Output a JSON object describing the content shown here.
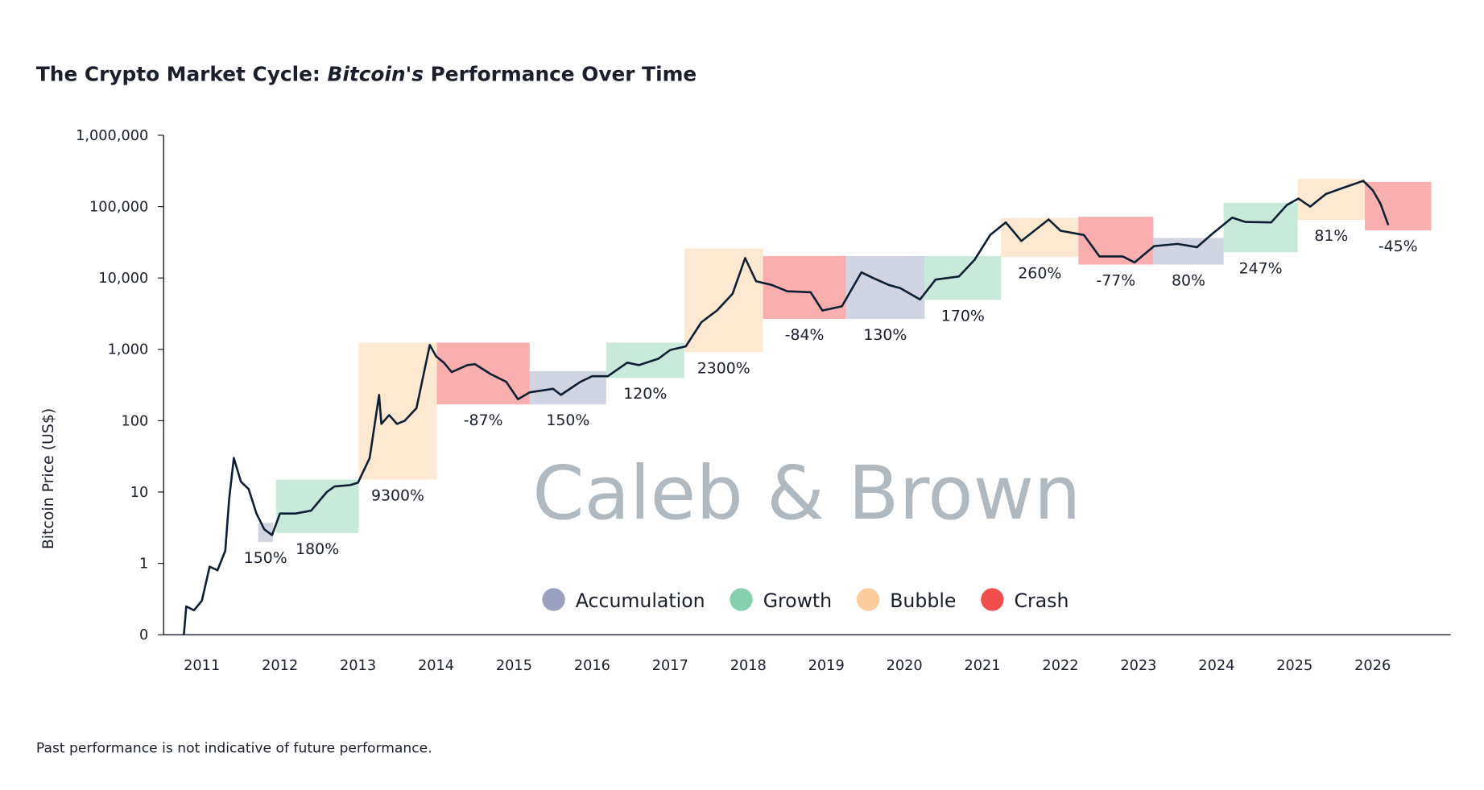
{
  "chart_data": {
    "type": "line",
    "title": {
      "before": "The Crypto Market Cycle: ",
      "italic": "Bitcoin's",
      "after": " Performance Over Time"
    },
    "y_label": "Bitcoin Price (US$)",
    "watermark": "Caleb & Brown",
    "footnote": "Past performance is not indicative of future performance.",
    "log_y": true,
    "ylim": [
      0.1,
      1000000
    ],
    "yticks": [
      {
        "value": 0.1,
        "label": "0"
      },
      1,
      10,
      100,
      {
        "value": 1000,
        "label": "1,000"
      },
      {
        "value": 10000,
        "label": "10,000"
      },
      {
        "value": 100000,
        "label": "100,000"
      },
      {
        "value": 1000000,
        "label": "1,000,000"
      }
    ],
    "xlim": [
      2010.51,
      2027.0
    ],
    "xticks": [
      2011,
      2012,
      2013,
      2014,
      2015,
      2016,
      2017,
      2018,
      2019,
      2020,
      2021,
      2022,
      2023,
      2024,
      2025,
      2026
    ],
    "phases": [
      {
        "name": "Accumulation",
        "color": "#9aa0bd"
      },
      {
        "name": "Growth",
        "color": "#86d0b0"
      },
      {
        "name": "Bubble",
        "color": "#fbcc9c"
      },
      {
        "name": "Crash",
        "color": "#f24e4e"
      }
    ],
    "cycles": [
      {
        "phase": "Accumulation",
        "x": [
          2011.72,
          2011.91
        ],
        "low": 2.0,
        "high": 3.7,
        "change": 150,
        "label": "150%"
      },
      {
        "phase": "Growth",
        "x": [
          2011.95,
          2013.01
        ],
        "low": 2.67,
        "high": 14.9,
        "change": 180,
        "label": "180%"
      },
      {
        "phase": "Bubble",
        "x": [
          2013.01,
          2014.01
        ],
        "low": 14.9,
        "high": 1240,
        "change": 9300,
        "label": "9300%"
      },
      {
        "phase": "Crash",
        "x": [
          2014.01,
          2015.2
        ],
        "low": 169,
        "high": 1240,
        "change": -87,
        "label": "-87%"
      },
      {
        "phase": "Accumulation",
        "x": [
          2015.2,
          2016.18
        ],
        "low": 169,
        "high": 494,
        "change": 150,
        "label": "150%"
      },
      {
        "phase": "Growth",
        "x": [
          2016.18,
          2017.18
        ],
        "low": 398,
        "high": 1240,
        "change": 120,
        "label": "120%"
      },
      {
        "phase": "Bubble",
        "x": [
          2017.18,
          2018.19
        ],
        "low": 912,
        "high": 25900,
        "change": 2300,
        "label": "2300%"
      },
      {
        "phase": "Crash",
        "x": [
          2018.19,
          2019.25
        ],
        "low": 2670,
        "high": 20300,
        "change": -84,
        "label": "-84%"
      },
      {
        "phase": "Accumulation",
        "x": [
          2019.25,
          2020.26
        ],
        "low": 2670,
        "high": 20300,
        "change": 130,
        "label": "130%"
      },
      {
        "phase": "Growth",
        "x": [
          2020.26,
          2021.24
        ],
        "low": 4930,
        "high": 20300,
        "change": 170,
        "label": "170%"
      },
      {
        "phase": "Bubble",
        "x": [
          2021.24,
          2022.23
        ],
        "low": 19600,
        "high": 69200,
        "change": 260,
        "label": "260%"
      },
      {
        "phase": "Crash",
        "x": [
          2022.23,
          2023.19
        ],
        "low": 15400,
        "high": 72000,
        "change": -77,
        "label": "-77%"
      },
      {
        "phase": "Accumulation",
        "x": [
          2023.19,
          2024.09
        ],
        "low": 15400,
        "high": 36300,
        "change": 80,
        "label": "80%"
      },
      {
        "phase": "Growth",
        "x": [
          2024.09,
          2025.04
        ],
        "low": 22900,
        "high": 113000,
        "change": 247,
        "label": "247%"
      },
      {
        "phase": "Bubble",
        "x": [
          2025.04,
          2025.9
        ],
        "low": 65100,
        "high": 244000,
        "change": 81,
        "label": "81%"
      },
      {
        "phase": "Crash",
        "x": [
          2025.9,
          2026.75
        ],
        "low": 46400,
        "high": 222000,
        "change": -45,
        "label": "-45%"
      }
    ],
    "series": [
      {
        "name": "Bitcoin Price",
        "color": "#0f1f33",
        "x": [
          2010.77,
          2010.8,
          2010.9,
          2011.0,
          2011.1,
          2011.2,
          2011.3,
          2011.35,
          2011.41,
          2011.5,
          2011.6,
          2011.7,
          2011.8,
          2011.9,
          2012.0,
          2012.2,
          2012.4,
          2012.6,
          2012.7,
          2012.9,
          2013.0,
          2013.15,
          2013.27,
          2013.3,
          2013.4,
          2013.5,
          2013.6,
          2013.75,
          2013.92,
          2014.0,
          2014.1,
          2014.2,
          2014.4,
          2014.5,
          2014.7,
          2014.9,
          2015.05,
          2015.2,
          2015.5,
          2015.6,
          2015.85,
          2016.0,
          2016.2,
          2016.45,
          2016.6,
          2016.85,
          2017.0,
          2017.2,
          2017.4,
          2017.6,
          2017.8,
          2017.96,
          2018.1,
          2018.3,
          2018.5,
          2018.8,
          2018.95,
          2019.2,
          2019.45,
          2019.6,
          2019.8,
          2019.95,
          2020.2,
          2020.4,
          2020.7,
          2020.9,
          2021.1,
          2021.3,
          2021.5,
          2021.85,
          2022.0,
          2022.3,
          2022.5,
          2022.8,
          2022.95,
          2023.2,
          2023.5,
          2023.75,
          2023.95,
          2024.2,
          2024.37,
          2024.7,
          2024.9,
          2025.05,
          2025.2,
          2025.4,
          2025.6,
          2025.88,
          2026.0,
          2026.1,
          2026.2
        ],
        "values": [
          0.1,
          0.25,
          0.22,
          0.3,
          0.9,
          0.8,
          1.5,
          8,
          30,
          14,
          11,
          5,
          3,
          2.5,
          5,
          5,
          5.5,
          10,
          12,
          12.5,
          13.5,
          30,
          230,
          90,
          120,
          90,
          100,
          150,
          1150,
          800,
          650,
          480,
          600,
          620,
          450,
          350,
          200,
          250,
          280,
          230,
          350,
          420,
          420,
          650,
          600,
          740,
          980,
          1100,
          2400,
          3500,
          6000,
          19000,
          9000,
          8000,
          6500,
          6300,
          3500,
          4000,
          12000,
          10000,
          8000,
          7200,
          5000,
          9500,
          10500,
          18000,
          40000,
          60000,
          33000,
          66000,
          46000,
          40000,
          20000,
          20000,
          16500,
          28000,
          30000,
          27000,
          42000,
          70000,
          61000,
          60000,
          105000,
          130000,
          100000,
          150000,
          180000,
          230000,
          170000,
          110000,
          55000
        ]
      }
    ]
  }
}
